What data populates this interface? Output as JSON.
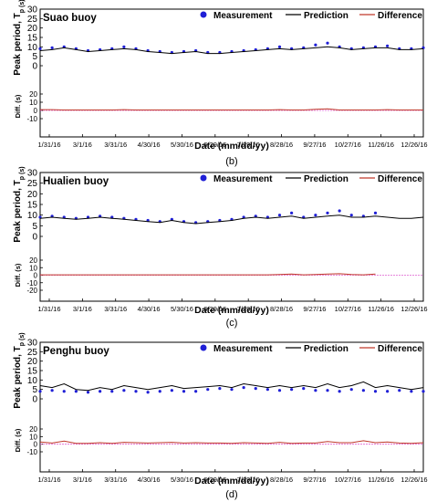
{
  "colors": {
    "measurement": "#1f1fd6",
    "prediction": "#000000",
    "difference": "#c0392b",
    "zero_line": "#e060d0"
  },
  "legend": {
    "measurement": "Measurement",
    "prediction": "Prediction",
    "difference": "Difference"
  },
  "chart_data": [
    {
      "type": "line",
      "panel_label": "(b)",
      "title": "Suao buoy",
      "ylabel": "Peak period, T_p (s)",
      "ylabel_diff": "Diff. (s)",
      "xlabel": "Date (mm/dd/yy)",
      "ylim": [
        0,
        30
      ],
      "yticks": [
        "0",
        "5",
        "10",
        "15",
        "20",
        "25",
        "30"
      ],
      "ylim_diff": [
        -10,
        20
      ],
      "yticks_diff": [
        "-10",
        "0",
        "10",
        "20"
      ],
      "xticks": [
        "1/31/16",
        "3/1/16",
        "3/31/16",
        "4/30/16",
        "5/30/16",
        "6/29/16",
        "7/29/16",
        "8/28/16",
        "9/27/16",
        "10/27/16",
        "11/26/16",
        "12/26/16"
      ],
      "series": [
        {
          "name": "Measurement",
          "style": "scatter",
          "values": [
            9,
            9.5,
            10,
            9,
            8,
            8.5,
            9,
            10,
            9,
            8,
            7.5,
            7,
            7.5,
            8,
            7,
            7,
            7.5,
            8,
            8.5,
            9,
            10,
            9,
            9.5,
            11,
            12,
            10,
            9,
            9.5,
            10,
            10.5,
            9,
            9,
            9.5
          ]
        },
        {
          "name": "Prediction",
          "style": "line",
          "values": [
            8,
            8.5,
            9.5,
            8.5,
            7.5,
            8,
            8.5,
            9,
            8.5,
            7.5,
            7,
            6.5,
            7,
            7.5,
            6.5,
            6.5,
            7,
            7.5,
            8,
            8.5,
            9,
            8.5,
            9,
            9.5,
            10,
            9.5,
            8.5,
            9,
            9.5,
            9.5,
            8.5,
            8.5,
            9
          ]
        },
        {
          "name": "Difference",
          "style": "line",
          "values": [
            1,
            1,
            0.5,
            0.5,
            0.5,
            0.5,
            0.5,
            1,
            0.5,
            0.5,
            0.5,
            0.5,
            0.5,
            0.5,
            0.5,
            0.5,
            0.5,
            0.5,
            0.5,
            0.5,
            1,
            0.5,
            0.5,
            1.5,
            2,
            0.5,
            0.5,
            0.5,
            0.5,
            1,
            0.5,
            0.5,
            0.5
          ]
        }
      ]
    },
    {
      "type": "line",
      "panel_label": "(c)",
      "title": "Hualien buoy",
      "ylabel": "Peak period, T_p (s)",
      "ylabel_diff": "Diff. (s)",
      "xlabel": "Date (mm/dd/yy)",
      "ylim": [
        0,
        30
      ],
      "yticks": [
        "0",
        "5",
        "10",
        "15",
        "20",
        "25",
        "30"
      ],
      "ylim_diff": [
        -20,
        20
      ],
      "yticks_diff": [
        "-20",
        "-10",
        "0",
        "10",
        "20"
      ],
      "xticks": [
        "1/31/16",
        "3/1/16",
        "3/31/16",
        "4/30/16",
        "5/30/16",
        "6/29/16",
        "7/29/16",
        "8/28/16",
        "9/27/16",
        "10/27/16",
        "11/26/16",
        "12/26/16"
      ],
      "series": [
        {
          "name": "Measurement",
          "style": "scatter",
          "values": [
            9,
            9.5,
            9,
            8.5,
            9,
            9.5,
            9,
            8.5,
            8,
            7.5,
            7,
            8,
            7,
            6.5,
            7,
            7.5,
            8,
            9,
            9.5,
            9,
            10,
            11,
            9,
            10,
            11,
            12,
            10,
            9.5,
            11,
            null,
            null,
            null,
            null
          ]
        },
        {
          "name": "Prediction",
          "style": "line",
          "values": [
            8.5,
            9,
            8.5,
            8,
            8.5,
            9,
            8.5,
            8,
            7.5,
            7,
            6.5,
            7.5,
            6.5,
            6,
            6.5,
            7,
            7.5,
            8.5,
            9,
            8.5,
            9,
            9.5,
            8.5,
            9,
            9.5,
            10,
            9,
            9,
            9.5,
            9,
            8.5,
            8.5,
            9
          ]
        },
        {
          "name": "Difference",
          "style": "line",
          "values": [
            0.5,
            0.5,
            0.5,
            0.5,
            0.5,
            0.5,
            0.5,
            0.5,
            0.5,
            0.5,
            0.5,
            0.5,
            0.5,
            0.5,
            0.5,
            0.5,
            0.5,
            0.5,
            0.5,
            0.5,
            1,
            1.5,
            0.5,
            1,
            1.5,
            2,
            1,
            0.5,
            1.5,
            null,
            null,
            0.5,
            null
          ]
        }
      ]
    },
    {
      "type": "line",
      "panel_label": "(d)",
      "title": "Penghu buoy",
      "ylabel": "Peak period, T_p (s)",
      "ylabel_diff": "Diff. (s)",
      "xlabel": "Date (mm/dd/yy)",
      "ylim": [
        0,
        30
      ],
      "yticks": [
        "0",
        "5",
        "10",
        "15",
        "20",
        "25",
        "30"
      ],
      "ylim_diff": [
        -10,
        20
      ],
      "yticks_diff": [
        "-10",
        "0",
        "10",
        "20"
      ],
      "xticks": [
        "1/31/16",
        "3/1/16",
        "3/31/16",
        "4/30/16",
        "5/30/16",
        "6/29/16",
        "7/29/16",
        "8/28/16",
        "9/27/16",
        "10/27/16",
        "11/26/16",
        "12/26/16"
      ],
      "series": [
        {
          "name": "Measurement",
          "style": "scatter",
          "values": [
            4,
            4.5,
            4,
            4,
            3.5,
            4,
            4,
            4.5,
            4,
            3.5,
            4,
            4.5,
            4,
            4,
            5,
            5.5,
            5,
            6,
            5.5,
            5,
            4.5,
            5,
            5.5,
            4.5,
            4.5,
            4,
            5,
            4.5,
            4,
            4,
            4.5,
            4,
            4
          ]
        },
        {
          "name": "Prediction",
          "style": "line",
          "values": [
            7,
            6,
            8,
            5,
            4.5,
            6,
            5,
            7,
            6,
            5,
            6,
            7,
            5.5,
            6,
            6.5,
            7,
            6,
            8,
            7,
            6,
            7,
            6,
            7,
            6,
            8,
            6,
            7,
            9,
            6,
            7,
            6,
            5,
            6
          ]
        },
        {
          "name": "Difference",
          "style": "line",
          "values": [
            3,
            1.5,
            4,
            1,
            1,
            2,
            1,
            2.5,
            2,
            1.5,
            2,
            2.5,
            1.5,
            2,
            1.5,
            1.5,
            1,
            2,
            1.5,
            1,
            2.5,
            1,
            1.5,
            1.5,
            3.5,
            2,
            2,
            4.5,
            2,
            3,
            1.5,
            1,
            2
          ]
        }
      ]
    }
  ]
}
